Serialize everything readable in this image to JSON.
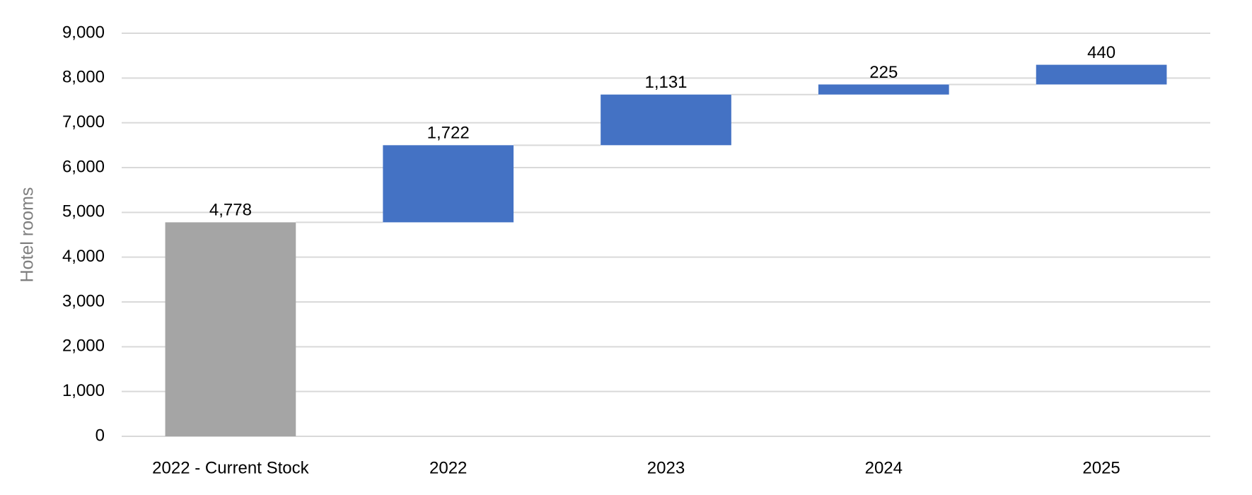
{
  "chart_data": {
    "type": "waterfall",
    "y_label": "Hotel rooms",
    "categories": [
      "2022 - Current Stock",
      "2022",
      "2023",
      "2024",
      "2025"
    ],
    "values": [
      4778,
      1722,
      1131,
      225,
      440
    ],
    "value_labels": [
      "4,778",
      "1,722",
      "1,131",
      "225",
      "440"
    ],
    "colors": [
      "#a5a5a5",
      "#4472c4",
      "#4472c4",
      "#4472c4",
      "#4472c4"
    ],
    "ylim": [
      0,
      9000
    ],
    "yticks": [
      0,
      {
        "value": 1000,
        "label": "1,000"
      },
      {
        "value": 2000,
        "label": "2,000"
      },
      {
        "value": 3000,
        "label": "3,000"
      },
      {
        "value": 4000,
        "label": "4,000"
      },
      {
        "value": 5000,
        "label": "5,000"
      },
      {
        "value": 6000,
        "label": "6,000"
      },
      {
        "value": 7000,
        "label": "7,000"
      },
      {
        "value": 8000,
        "label": "8,000"
      },
      {
        "value": 9000,
        "label": "9,000"
      }
    ],
    "grid": true
  }
}
